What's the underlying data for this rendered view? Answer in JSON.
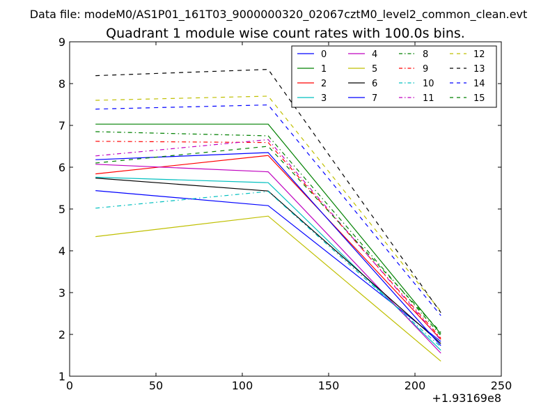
{
  "chart_data": {
    "type": "line",
    "suptitle": "Data file: modeM0/AS1P01_161T03_9000000320_02067cztM0_level2_common_clean.evt",
    "title": "Quadrant 1 module wise count rates with 100.0s bins.",
    "xlabel": "",
    "ylabel": "",
    "x_offset_label": "+1.93169e8",
    "xlim": [
      0,
      250
    ],
    "ylim": [
      1,
      9
    ],
    "xticks": [
      0,
      50,
      100,
      150,
      200,
      250
    ],
    "yticks": [
      1,
      2,
      3,
      4,
      5,
      6,
      7,
      8,
      9
    ],
    "x": [
      15,
      115,
      215
    ],
    "legend_position": "top-right",
    "series": [
      {
        "name": "0",
        "values": [
          5.44,
          5.08,
          1.83
        ],
        "color": "#0000ff",
        "dash": "solid"
      },
      {
        "name": "1",
        "values": [
          7.03,
          7.03,
          2.01
        ],
        "color": "#008000",
        "dash": "solid"
      },
      {
        "name": "2",
        "values": [
          5.84,
          6.28,
          1.88
        ],
        "color": "#ff0000",
        "dash": "solid"
      },
      {
        "name": "3",
        "values": [
          5.76,
          5.63,
          1.62
        ],
        "color": "#00bfbf",
        "dash": "solid"
      },
      {
        "name": "4",
        "values": [
          6.07,
          5.89,
          1.55
        ],
        "color": "#bf00bf",
        "dash": "solid"
      },
      {
        "name": "5",
        "values": [
          4.34,
          4.83,
          1.36
        ],
        "color": "#bfbf00",
        "dash": "solid"
      },
      {
        "name": "6",
        "values": [
          5.74,
          5.43,
          1.78
        ],
        "color": "#000000",
        "dash": "solid"
      },
      {
        "name": "7",
        "values": [
          6.18,
          6.35,
          1.73
        ],
        "color": "#0000ff",
        "dash": "solid"
      },
      {
        "name": "8",
        "values": [
          6.85,
          6.75,
          1.97
        ],
        "color": "#008000",
        "dash": "dash-dot"
      },
      {
        "name": "9",
        "values": [
          6.62,
          6.59,
          1.91
        ],
        "color": "#ff0000",
        "dash": "dash-dot"
      },
      {
        "name": "10",
        "values": [
          5.02,
          5.42,
          1.7
        ],
        "color": "#00bfbf",
        "dash": "dash-dot"
      },
      {
        "name": "11",
        "values": [
          6.27,
          6.66,
          1.86
        ],
        "color": "#bf00bf",
        "dash": "dash-dot"
      },
      {
        "name": "12",
        "values": [
          7.6,
          7.7,
          2.55
        ],
        "color": "#bfbf00",
        "dash": "dashed"
      },
      {
        "name": "13",
        "values": [
          8.19,
          8.34,
          2.52
        ],
        "color": "#000000",
        "dash": "dashed"
      },
      {
        "name": "14",
        "values": [
          7.39,
          7.49,
          2.45
        ],
        "color": "#0000ff",
        "dash": "dashed"
      },
      {
        "name": "15",
        "values": [
          6.1,
          6.5,
          2.05
        ],
        "color": "#008000",
        "dash": "dashed"
      }
    ]
  }
}
